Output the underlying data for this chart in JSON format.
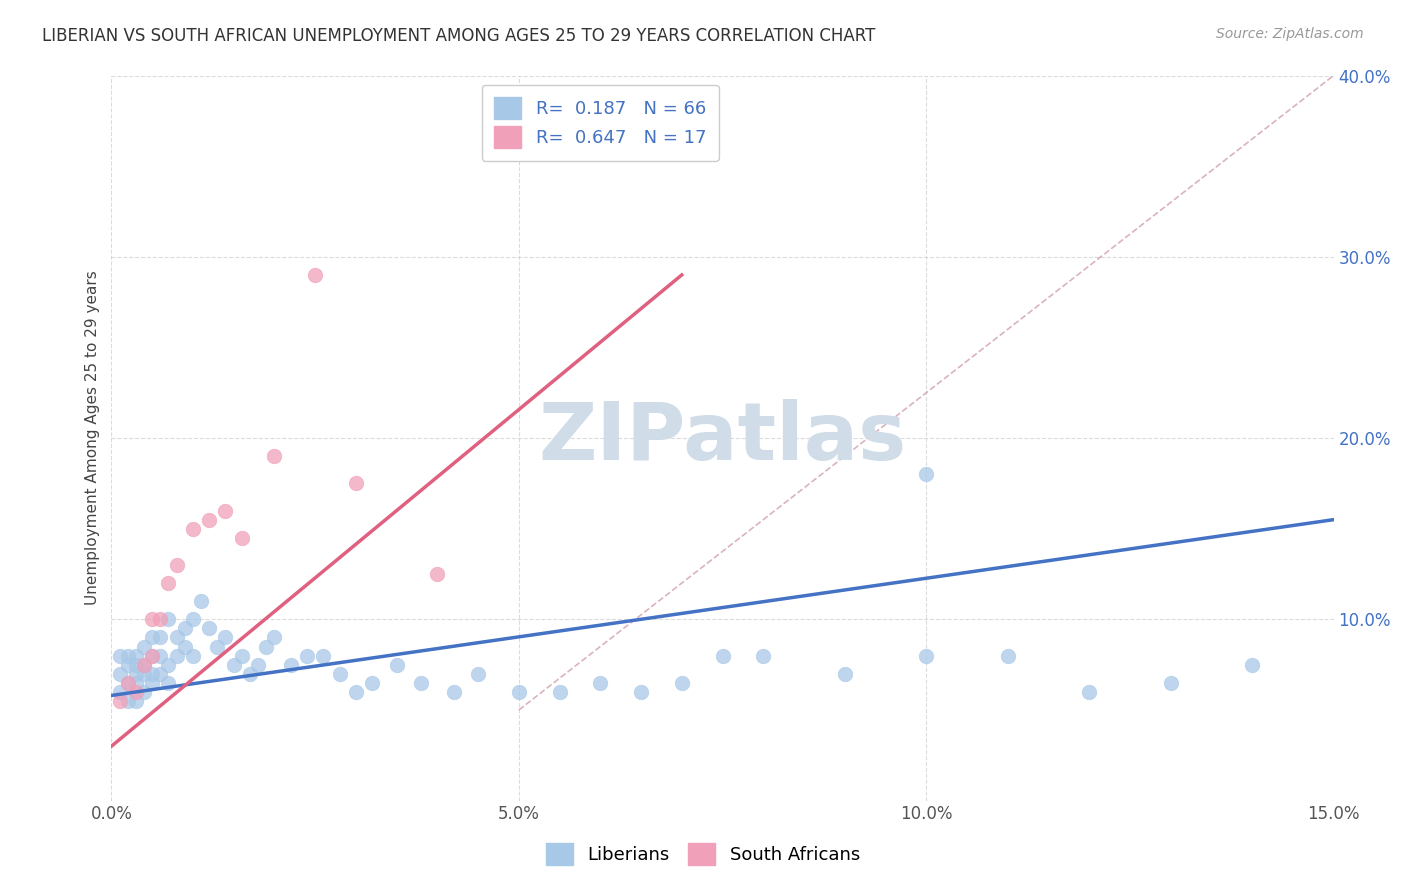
{
  "title": "LIBERIAN VS SOUTH AFRICAN UNEMPLOYMENT AMONG AGES 25 TO 29 YEARS CORRELATION CHART",
  "source": "Source: ZipAtlas.com",
  "xlabel_label": "Liberians",
  "ylabel_label": "Unemployment Among Ages 25 to 29 years",
  "xlabel2_label": "South Africans",
  "xlim": [
    0.0,
    0.15
  ],
  "ylim": [
    0.0,
    0.4
  ],
  "xticks": [
    0.0,
    0.05,
    0.1,
    0.15
  ],
  "yticks": [
    0.0,
    0.1,
    0.2,
    0.3,
    0.4
  ],
  "xtick_labels": [
    "0.0%",
    "5.0%",
    "10.0%",
    "15.0%"
  ],
  "ytick_labels": [
    "",
    "10.0%",
    "20.0%",
    "30.0%",
    "40.0%"
  ],
  "R_blue": 0.187,
  "N_blue": 66,
  "R_pink": 0.647,
  "N_pink": 17,
  "blue_color": "#A8C8E8",
  "pink_color": "#F0A0B8",
  "blue_line_color": "#4472C4",
  "pink_line_color": "#E06080",
  "ref_line_color": "#D0A0B0",
  "legend_text_color": "#4472C4",
  "watermark": "ZIPatlas",
  "watermark_color": "#D0DCE8",
  "background_color": "#FFFFFF",
  "grid_color": "#CCCCCC",
  "blue_scatter_x": [
    0.001,
    0.001,
    0.001,
    0.002,
    0.002,
    0.002,
    0.002,
    0.003,
    0.003,
    0.003,
    0.003,
    0.003,
    0.004,
    0.004,
    0.004,
    0.004,
    0.005,
    0.005,
    0.005,
    0.005,
    0.006,
    0.006,
    0.006,
    0.007,
    0.007,
    0.007,
    0.008,
    0.008,
    0.009,
    0.009,
    0.01,
    0.01,
    0.011,
    0.012,
    0.013,
    0.014,
    0.015,
    0.016,
    0.017,
    0.018,
    0.019,
    0.02,
    0.022,
    0.024,
    0.026,
    0.028,
    0.03,
    0.032,
    0.035,
    0.038,
    0.042,
    0.045,
    0.05,
    0.055,
    0.06,
    0.065,
    0.07,
    0.075,
    0.08,
    0.09,
    0.1,
    0.1,
    0.11,
    0.12,
    0.13,
    0.14
  ],
  "blue_scatter_y": [
    0.06,
    0.07,
    0.08,
    0.055,
    0.065,
    0.075,
    0.08,
    0.055,
    0.065,
    0.07,
    0.075,
    0.08,
    0.06,
    0.07,
    0.075,
    0.085,
    0.065,
    0.07,
    0.08,
    0.09,
    0.07,
    0.08,
    0.09,
    0.065,
    0.075,
    0.1,
    0.08,
    0.09,
    0.085,
    0.095,
    0.08,
    0.1,
    0.11,
    0.095,
    0.085,
    0.09,
    0.075,
    0.08,
    0.07,
    0.075,
    0.085,
    0.09,
    0.075,
    0.08,
    0.08,
    0.07,
    0.06,
    0.065,
    0.075,
    0.065,
    0.06,
    0.07,
    0.06,
    0.06,
    0.065,
    0.06,
    0.065,
    0.08,
    0.08,
    0.07,
    0.08,
    0.18,
    0.08,
    0.06,
    0.065,
    0.075
  ],
  "pink_scatter_x": [
    0.001,
    0.002,
    0.003,
    0.004,
    0.005,
    0.005,
    0.006,
    0.007,
    0.008,
    0.01,
    0.012,
    0.014,
    0.016,
    0.02,
    0.025,
    0.03,
    0.04
  ],
  "pink_scatter_y": [
    0.055,
    0.065,
    0.06,
    0.075,
    0.08,
    0.1,
    0.1,
    0.12,
    0.13,
    0.15,
    0.155,
    0.16,
    0.145,
    0.19,
    0.29,
    0.175,
    0.125
  ],
  "blue_trend_x0": 0.0,
  "blue_trend_y0": 0.058,
  "blue_trend_x1": 0.15,
  "blue_trend_y1": 0.155,
  "pink_trend_x0": 0.0,
  "pink_trend_y0": 0.03,
  "pink_trend_x1": 0.07,
  "pink_trend_y1": 0.29,
  "title_fontsize": 12,
  "axis_label_fontsize": 11,
  "tick_fontsize": 12,
  "legend_fontsize": 13
}
